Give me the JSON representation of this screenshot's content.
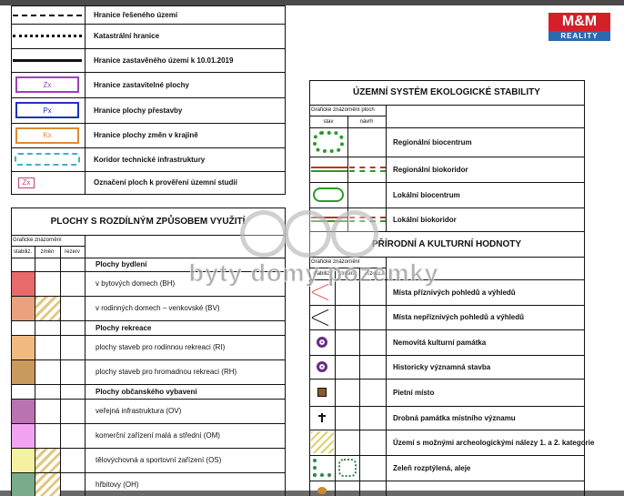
{
  "logo": {
    "brand": "M&M",
    "sub": "REALITY"
  },
  "watermark": "byty domy pozemky",
  "boundaries": {
    "rows": [
      {
        "label": "Hranice řešeného území"
      },
      {
        "label": "Katastrální hranice"
      },
      {
        "label": "Hranice zastavěného území k 10.01.2019"
      },
      {
        "label": "Hranice zastavitelné plochy",
        "code": "Zx"
      },
      {
        "label": "Hranice plochy přestavby",
        "code": "Px"
      },
      {
        "label": "Hranice plochy změn v krajině",
        "code": "Kx"
      },
      {
        "label": "Koridor technické infrastruktury"
      },
      {
        "label": "Označení ploch k prověření územní studií",
        "code": "Zx"
      }
    ]
  },
  "land_use": {
    "title": "PLOCHY S ROZDÍLNÝM ZPŮSOBEM VYUŽITÍ",
    "graphic_header": "Grafické znázornění",
    "columns": [
      "stabiliz.",
      "změn",
      "rezerv"
    ],
    "rows": [
      {
        "heading": "Plochy bydlení"
      },
      {
        "label": "v bytových domech (BH)"
      },
      {
        "label": "v rodinných domech – venkovské (BV)"
      },
      {
        "heading": "Plochy rekreace"
      },
      {
        "label": "plochy staveb pro rodinnou rekreaci (RI)"
      },
      {
        "label": "plochy staveb pro hromadnou rekreaci (RH)"
      },
      {
        "heading": "Plochy občanského vybavení"
      },
      {
        "label": "veřejná infrastruktura (OV)"
      },
      {
        "label": "komerční zařízení malá a střední (OM)"
      },
      {
        "label": "tělovýchovná a sportovní zařízení (OS)"
      },
      {
        "label": "hřbitovy (OH)"
      }
    ]
  },
  "ecology": {
    "title": "ÚZEMNÍ SYSTÉM EKOLOGICKÉ STABILITY",
    "graphic_header": "Grafické znázornění ploch",
    "columns": [
      "stav",
      "návrh"
    ],
    "rows": [
      "Regionální biocentrum",
      "Regionální biokoridor",
      "Lokální biocentrum",
      "Lokální biokoridor"
    ]
  },
  "heritage": {
    "title": "PŘÍRODNÍ A KULTURNÍ HODNOTY",
    "graphic_header": "Grafické znázornění",
    "columns": [
      "stabiliz.",
      "změn",
      "rezerv"
    ],
    "rows": [
      "Místa příznivých pohledů a výhledů",
      "Místa nepříznivých pohledů a výhledů",
      "Nemovitá kulturní památka",
      "Historicky významná stavba",
      "Pietní místo",
      "Drobná památka místního významu",
      "Území s možnými archeologickými nálezy 1. a 2. kategorie",
      "Zeleň rozptýlená, aleje"
    ]
  }
}
